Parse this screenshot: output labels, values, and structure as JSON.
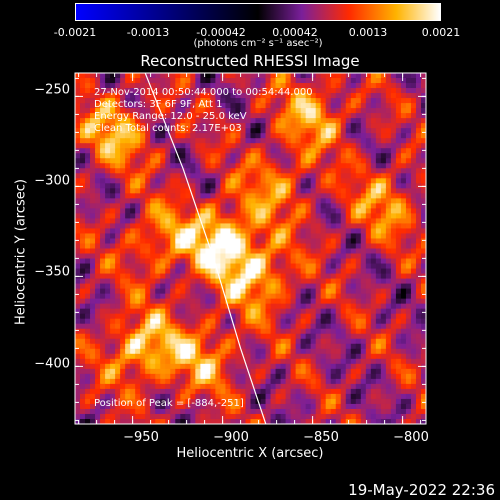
{
  "window": {
    "title": "Reconstructed RHESSI Image",
    "footer_date": "19-May-2022 22:36"
  },
  "colorbar": {
    "tick_labels": [
      "-0.0021",
      "-0.0013",
      "-0.00042",
      "0.00042",
      "0.0013",
      "0.0021"
    ],
    "units_label": "(photons cm⁻² s⁻¹ asec⁻²)",
    "colors": {
      "min": "#0000ff",
      "mid_dark": "#000000",
      "mid": "#7a1f9a",
      "high": "#ff2a00",
      "upper": "#ffb300",
      "max": "#ffffff"
    }
  },
  "annotations": {
    "time_range": "27-Nov-2014 00:50:44.000 to 00:54:44.000",
    "detectors": "Detectors: 3F 6F 9F, Att 1",
    "energy_range": "Energy Range: 12.0 - 25.0 keV",
    "clean_counts": "Clean    Total counts: 2.17E+03",
    "peak_position": "Position of Peak = [-884,-251]"
  },
  "axes": {
    "xlabel": "Heliocentric X (arcsec)",
    "ylabel": "Heliocentric Y (arcsec)",
    "x_ticks": [
      -950,
      -900,
      -850,
      -800
    ],
    "y_ticks": [
      -250,
      -300,
      -350,
      -400
    ],
    "x_tick_labels": [
      "−950",
      "−900",
      "−850",
      "−800"
    ],
    "y_tick_labels": [
      "−250",
      "−300",
      "−350",
      "−400"
    ],
    "x_range": [
      -982,
      -787
    ],
    "y_range": [
      -432,
      -237
    ]
  },
  "chart_data": {
    "type": "heatmap",
    "title": "Reconstructed RHESSI Image",
    "xlabel": "Heliocentric X (arcsec)",
    "ylabel": "Heliocentric Y (arcsec)",
    "xlim": [
      -982,
      -787
    ],
    "ylim": [
      -432,
      -237
    ],
    "colorbar_range": [
      -0.0021,
      0.0021
    ],
    "peak": {
      "x": -884,
      "y": -251
    },
    "bright_sources": [
      {
        "x": -900,
        "y": -330,
        "level": 1.0
      },
      {
        "x": -945,
        "y": -390,
        "level": 0.9
      },
      {
        "x": -880,
        "y": -350,
        "level": 0.8
      },
      {
        "x": -960,
        "y": -270,
        "level": 0.75
      },
      {
        "x": -850,
        "y": -260,
        "level": 0.7
      },
      {
        "x": -910,
        "y": -395,
        "level": 0.65
      },
      {
        "x": -810,
        "y": -310,
        "level": 0.6
      },
      {
        "x": -935,
        "y": -330,
        "level": 0.6
      },
      {
        "x": -870,
        "y": -300,
        "level": 0.55
      }
    ],
    "limb_curve": [
      {
        "x": -943,
        "y": -237
      },
      {
        "x": -922,
        "y": -290
      },
      {
        "x": -905,
        "y": -340
      },
      {
        "x": -890,
        "y": -390
      },
      {
        "x": -876,
        "y": -432
      }
    ]
  }
}
